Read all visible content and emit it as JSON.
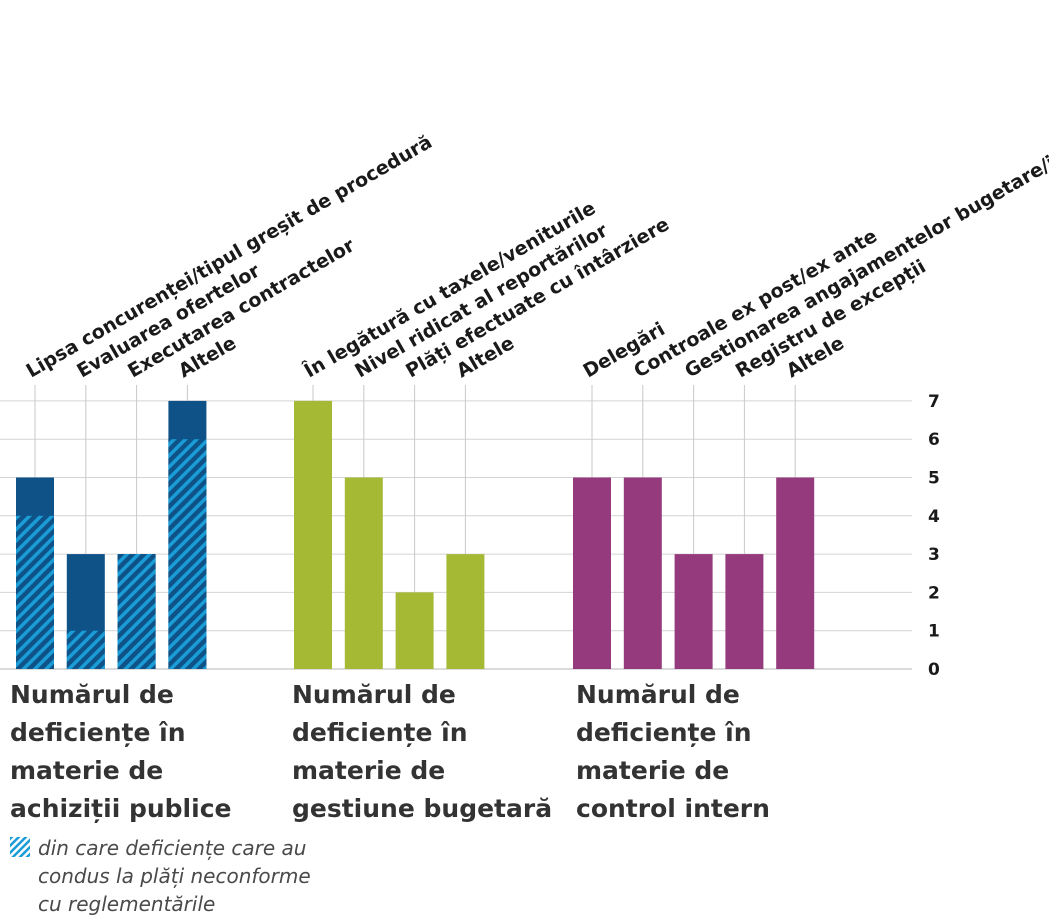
{
  "chart_data": {
    "type": "bar",
    "ylim": [
      0,
      7
    ],
    "yticks": [
      "0",
      "1",
      "2",
      "3",
      "4",
      "5",
      "6",
      "7"
    ],
    "groups": [
      {
        "title": "Numărul de deficiențe în materie de achiziții publice",
        "title_lines": [
          "Numărul de",
          "deficiențe în",
          "materie de",
          "achiziții publice"
        ],
        "color": "#0f5288",
        "hatch_color": "#1a9cd6",
        "categories": [
          {
            "label": "Lipsa concurenței/tipul greșit de procedură",
            "value": 5,
            "hatched": 4
          },
          {
            "label": "Evaluarea ofertelor",
            "value": 3,
            "hatched": 1
          },
          {
            "label": "Executarea contractelor",
            "value": 3,
            "hatched": 3
          },
          {
            "label": "Altele",
            "value": 7,
            "hatched": 6
          }
        ]
      },
      {
        "title": "Numărul de deficiențe în materie de gestiune bugetară",
        "title_lines": [
          "Numărul de",
          "deficiențe în",
          "materie de",
          "gestiune bugetară"
        ],
        "color": "#a6b935",
        "categories": [
          {
            "label": "În legătură cu taxele/veniturile",
            "value": 7
          },
          {
            "label": "Nivel ridicat al reportărilor",
            "value": 5
          },
          {
            "label": "Plăți efectuate cu întârziere",
            "value": 2
          },
          {
            "label": "Altele",
            "value": 3
          }
        ]
      },
      {
        "title": "Numărul de deficiențe în materie de control intern",
        "title_lines": [
          "Numărul de",
          "deficiențe în",
          "materie de",
          "control intern"
        ],
        "color": "#953a7c",
        "categories": [
          {
            "label": "Delegări",
            "value": 5
          },
          {
            "label": "Controale ex post/ex ante",
            "value": 5
          },
          {
            "label": "Gestionarea angajamentelor bugetare/juridice",
            "value": 3
          },
          {
            "label": "Registru de excepții",
            "value": 3
          },
          {
            "label": "Altele",
            "value": 5
          }
        ]
      }
    ],
    "legend": {
      "text": "din care deficiențe care au condus la plăți neconforme cu reglementările",
      "lines": [
        "din care deficiențe care au",
        "condus la plăți neconforme",
        "cu reglementările"
      ]
    }
  }
}
